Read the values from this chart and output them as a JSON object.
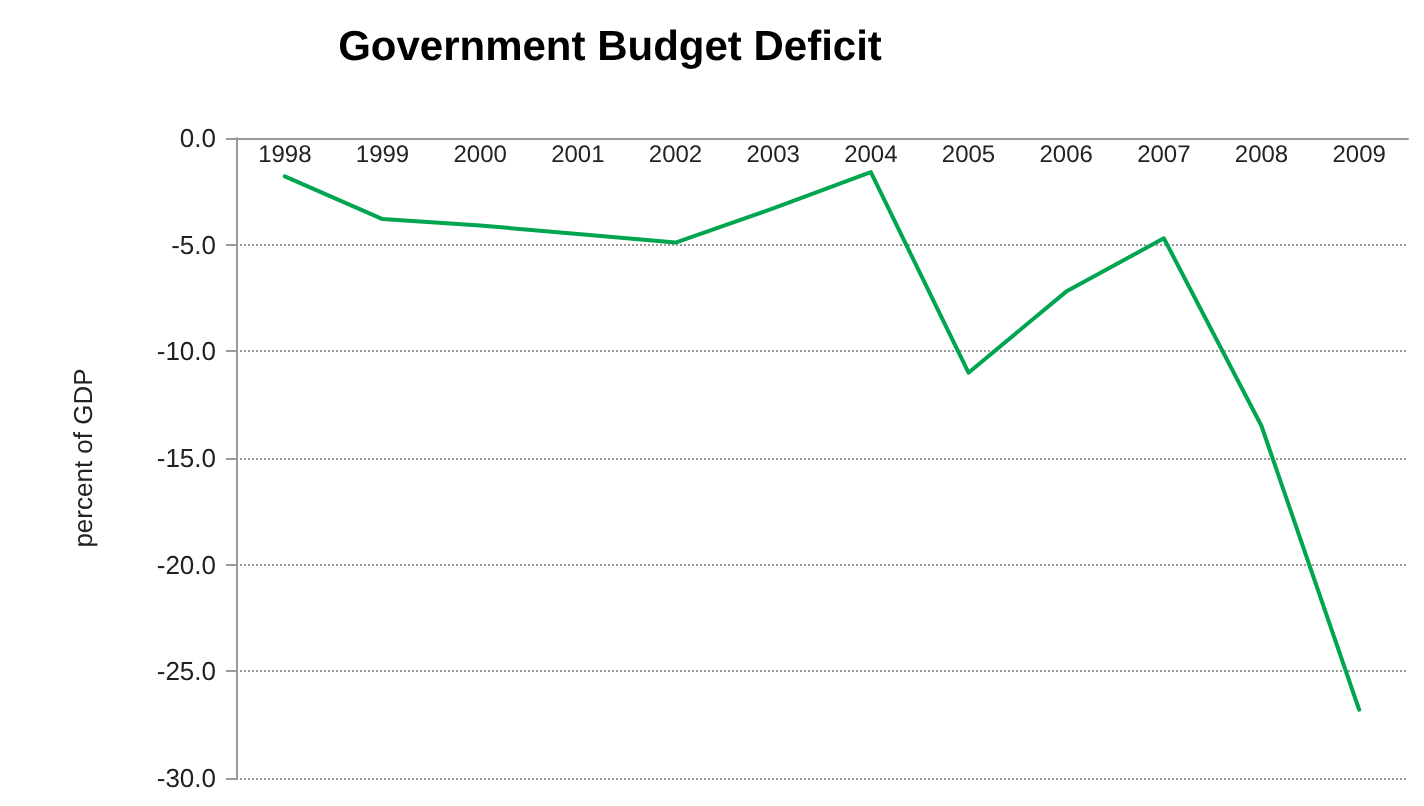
{
  "chart_data": {
    "type": "line",
    "title": "Government Budget Deficit",
    "ylabel": "percent of GDP",
    "categories": [
      "1998",
      "1999",
      "2000",
      "2001",
      "2002",
      "2003",
      "2004",
      "2005",
      "2006",
      "2007",
      "2008",
      "2009"
    ],
    "series": [
      {
        "color": "#00a550",
        "values": [
          -1.8,
          -3.8,
          -4.1,
          -4.5,
          -4.9,
          -3.3,
          -1.6,
          -11.0,
          -7.2,
          -4.7,
          -13.5,
          -26.8
        ]
      }
    ],
    "ylim": [
      -30,
      0
    ],
    "yticks": [
      {
        "value": -30,
        "label": "-30.0"
      },
      {
        "value": -25,
        "label": "-25.0"
      },
      {
        "value": -20,
        "label": "-20.0"
      },
      {
        "value": -15,
        "label": "-15.0"
      },
      {
        "value": -10,
        "label": "-10.0"
      },
      {
        "value": -5,
        "label": "-5.0"
      },
      {
        "value": 0,
        "label": "0.0"
      }
    ],
    "grid": "y",
    "marker": "none",
    "line_style": "solid"
  }
}
